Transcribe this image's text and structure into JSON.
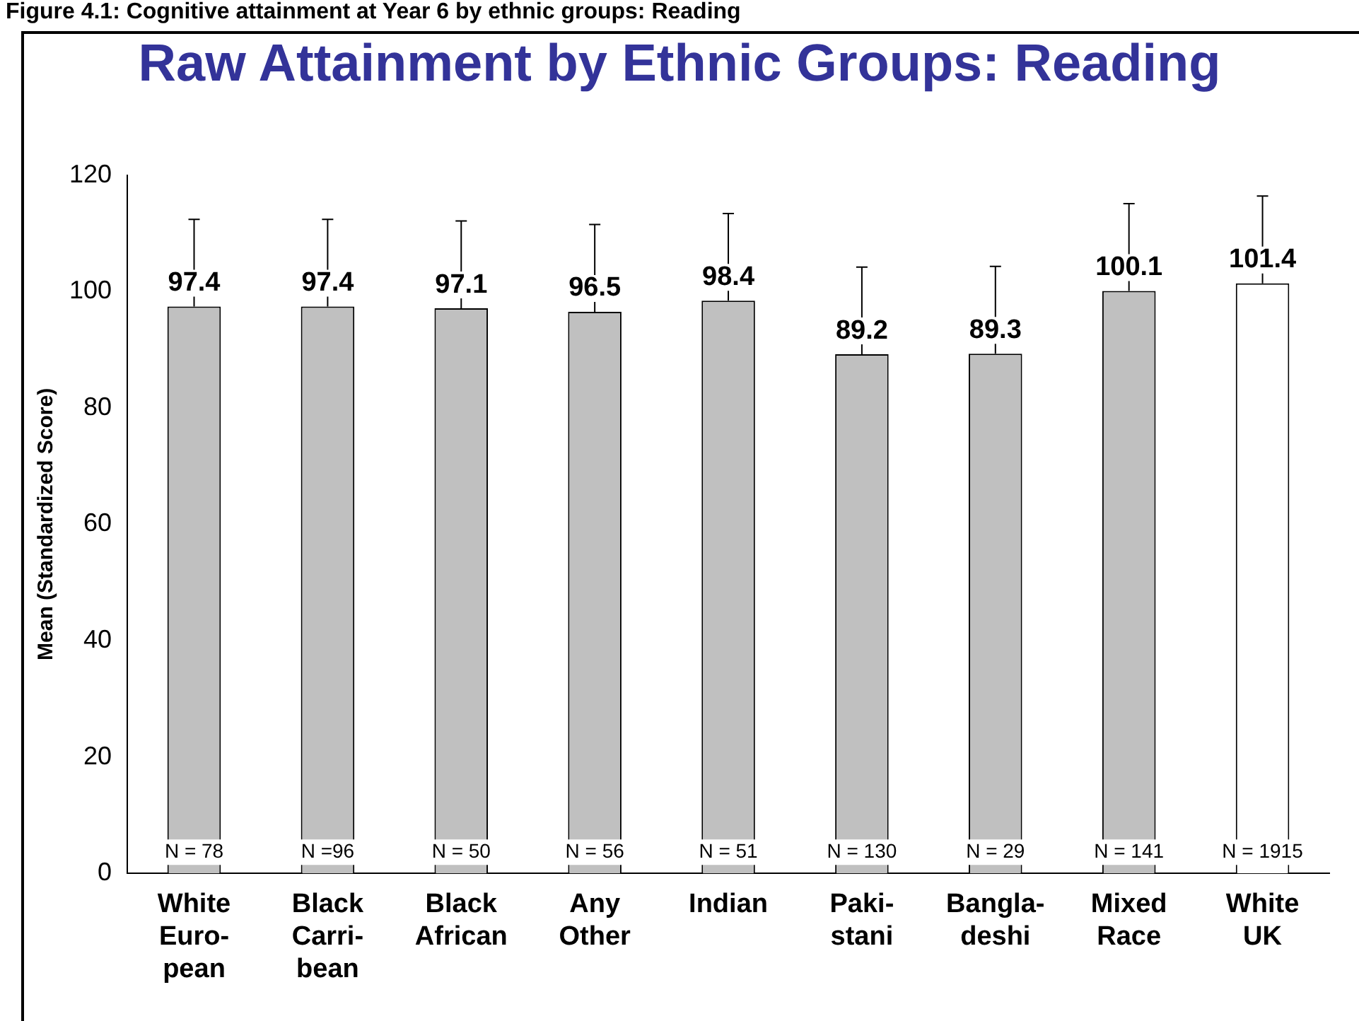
{
  "chart_data": {
    "type": "bar",
    "title": "Raw Attainment by Ethnic Groups: Reading",
    "subtitle": "Figure 4.1: Cognitive attainment at Year 6 by ethnic groups: Reading",
    "ylabel": "Mean (Standardized Score)",
    "categories": [
      "White\nEuro-\npean",
      "Black\nCarri-\nbean",
      "Black\nAfrican",
      "Any\nOther",
      "Indian",
      "Paki-\nstani",
      "Bangla-\ndeshi",
      "Mixed\nRace",
      "White\nUK"
    ],
    "values": [
      97.4,
      97.4,
      97.1,
      96.5,
      98.4,
      89.2,
      89.3,
      100.1,
      101.4
    ],
    "colors": [
      "#c0c0c0",
      "#c0c0c0",
      "#c0c0c0",
      "#c0c0c0",
      "#c0c0c0",
      "#c0c0c0",
      "#c0c0c0",
      "#c0c0c0",
      "#ffffff"
    ],
    "errors": [
      15,
      15,
      15,
      15,
      15,
      15,
      15,
      15,
      15
    ],
    "data_labels": true,
    "ylim": [
      0,
      120
    ],
    "yticks": [
      0,
      20,
      40,
      60,
      80,
      100,
      120
    ],
    "grid": false,
    "legend": false,
    "annotations": [
      "N = 78",
      "N =96",
      "N = 50",
      "N = 56",
      "N = 51",
      "N = 130",
      "N = 29",
      "N = 141",
      "N = 1915"
    ]
  }
}
